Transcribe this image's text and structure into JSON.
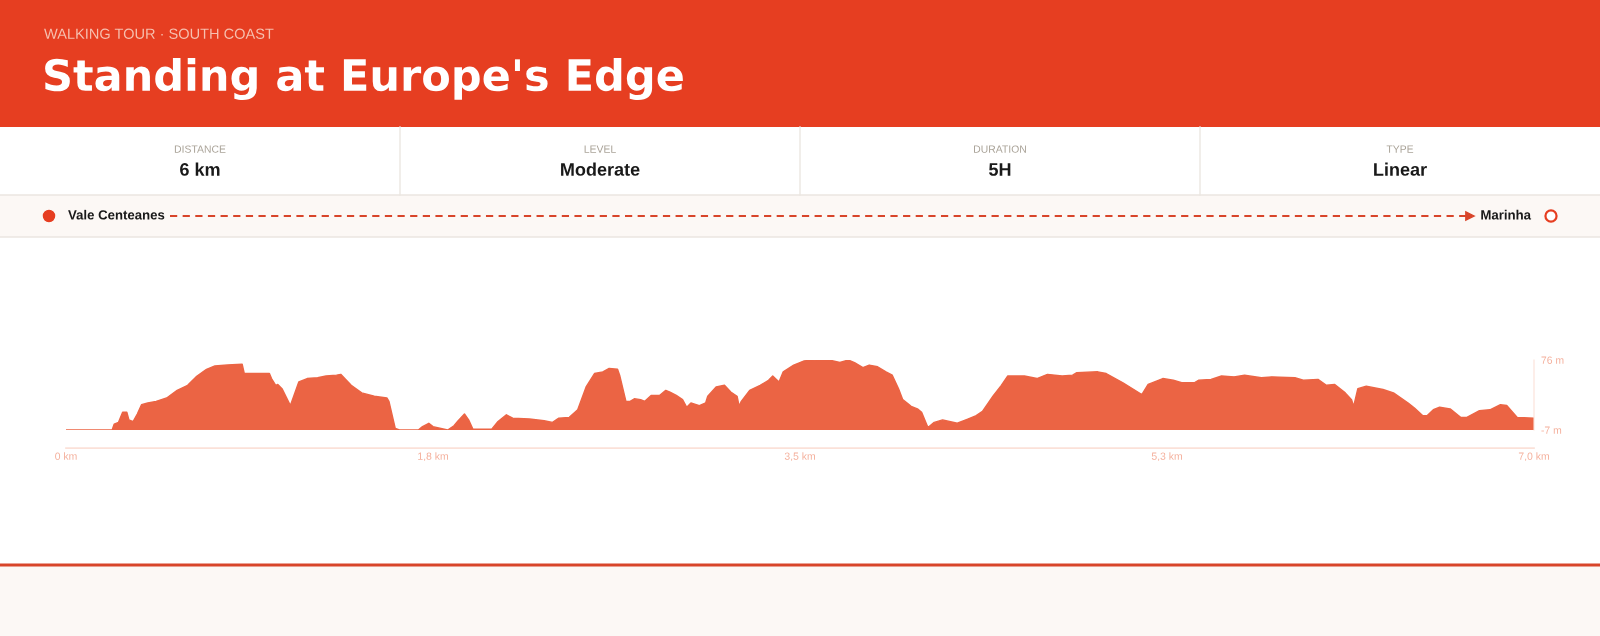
{
  "chart_data": {
    "type": "area",
    "title": "Standing at Europe's Edge",
    "subtitle": "WALKING TOUR · SOUTH COAST",
    "annotations": [
      "DISTANCE",
      "6 km",
      "LEVEL",
      "Moderate",
      "DURATION",
      "5H",
      "TYPE",
      "Linear",
      "Vale Centeanes",
      "Marinha"
    ],
    "x": [
      0,
      0.22,
      0.23,
      0.25,
      0.27,
      0.29,
      0.3,
      0.32,
      0.34,
      0.36,
      0.39,
      0.43,
      0.48,
      0.53,
      0.58,
      0.62,
      0.67,
      0.71,
      0.77,
      0.84,
      0.85,
      0.97,
      0.98,
      1.0,
      1.01,
      1.03,
      1.07,
      1.11,
      1.15,
      1.2,
      1.24,
      1.29,
      1.31,
      1.36,
      1.41,
      1.47,
      1.53,
      1.54,
      1.57,
      1.59,
      1.68,
      1.7,
      1.73,
      1.75,
      1.82,
      1.85,
      1.87,
      1.9,
      1.92,
      1.94,
      2.03,
      2.06,
      2.1,
      2.13,
      2.21,
      2.28,
      2.32,
      2.35,
      2.4,
      2.44,
      2.48,
      2.52,
      2.56,
      2.59,
      2.63,
      2.64,
      2.67,
      2.69,
      2.71,
      2.74,
      2.76,
      2.79,
      2.83,
      2.86,
      2.88,
      2.91,
      2.94,
      2.96,
      2.98,
      3.02,
      3.05,
      3.06,
      3.1,
      3.14,
      3.17,
      3.2,
      3.21,
      3.22,
      3.26,
      3.31,
      3.35,
      3.37,
      3.4,
      3.42,
      3.47,
      3.52,
      3.58,
      3.64,
      3.69,
      3.73,
      3.76,
      3.8,
      3.83,
      3.87,
      3.91,
      3.94,
      3.97,
      3.99,
      4.03,
      4.06,
      4.08,
      4.11,
      4.14,
      4.18,
      4.25,
      4.3,
      4.34,
      4.37,
      4.42,
      4.46,
      4.49,
      4.57,
      4.63,
      4.68,
      4.75,
      4.8,
      4.82,
      4.92,
      4.96,
      5.04,
      5.13,
      5.16,
      5.23,
      5.28,
      5.32,
      5.38,
      5.4,
      5.46,
      5.51,
      5.57,
      5.62,
      5.7,
      5.75,
      5.86,
      5.9,
      5.97,
      6.01,
      6.05,
      6.1,
      6.13,
      6.14,
      6.16,
      6.2,
      6.28,
      6.33,
      6.4,
      6.43,
      6.47,
      6.49,
      6.52,
      6.55,
      6.6,
      6.65,
      6.68,
      6.74,
      6.79,
      6.84,
      6.87,
      6.92,
      7.0
    ],
    "values": [
      -7,
      -7,
      0,
      2,
      14,
      14,
      5,
      3,
      12,
      23,
      25,
      27,
      31,
      40,
      46,
      56,
      65,
      69,
      70,
      71,
      60,
      60,
      54,
      46,
      47,
      42,
      22,
      50,
      54,
      55,
      57,
      58,
      59,
      46,
      37,
      33,
      31,
      27,
      -5,
      -7,
      -7,
      -3,
      1,
      -3,
      -7,
      -2,
      4,
      12,
      5,
      -6,
      -6,
      3,
      11,
      7,
      6,
      4,
      2,
      7,
      8,
      17,
      44,
      60,
      62,
      66,
      65,
      58,
      27,
      27,
      30,
      29,
      27,
      34,
      34,
      40,
      38,
      34,
      29,
      20,
      25,
      22,
      25,
      33,
      44,
      46,
      38,
      33,
      21,
      27,
      40,
      46,
      52,
      57,
      50,
      62,
      70,
      75,
      76,
      76,
      73,
      76,
      73,
      67,
      70,
      68,
      62,
      58,
      42,
      29,
      21,
      18,
      14,
      -4,
      2,
      5,
      1,
      6,
      10,
      15,
      33,
      46,
      57,
      57,
      54,
      59,
      57,
      58,
      61,
      62,
      60,
      49,
      35,
      47,
      54,
      52,
      49,
      49,
      52,
      53,
      57,
      56,
      58,
      55,
      56,
      55,
      52,
      53,
      46,
      47,
      37,
      29,
      21,
      42,
      45,
      41,
      37,
      25,
      19,
      10,
      10,
      17,
      20,
      18,
      8,
      8,
      16,
      17,
      23,
      22,
      8,
      7
    ],
    "color": "#eb6444",
    "xlim": [
      0,
      7.0
    ],
    "xticks": [
      {
        "value": 0,
        "label": "0 km"
      },
      {
        "value": 1.75,
        "label": "1,8 km"
      },
      {
        "value": 3.5,
        "label": "3,5 km"
      },
      {
        "value": 5.25,
        "label": "5,3 km"
      },
      {
        "value": 7.0,
        "label": "7,0 km"
      }
    ],
    "ylim": [
      -7,
      76
    ],
    "yticks": [
      {
        "value": -7,
        "label": "-7 m"
      },
      {
        "value": 76,
        "label": "76 m"
      }
    ]
  }
}
